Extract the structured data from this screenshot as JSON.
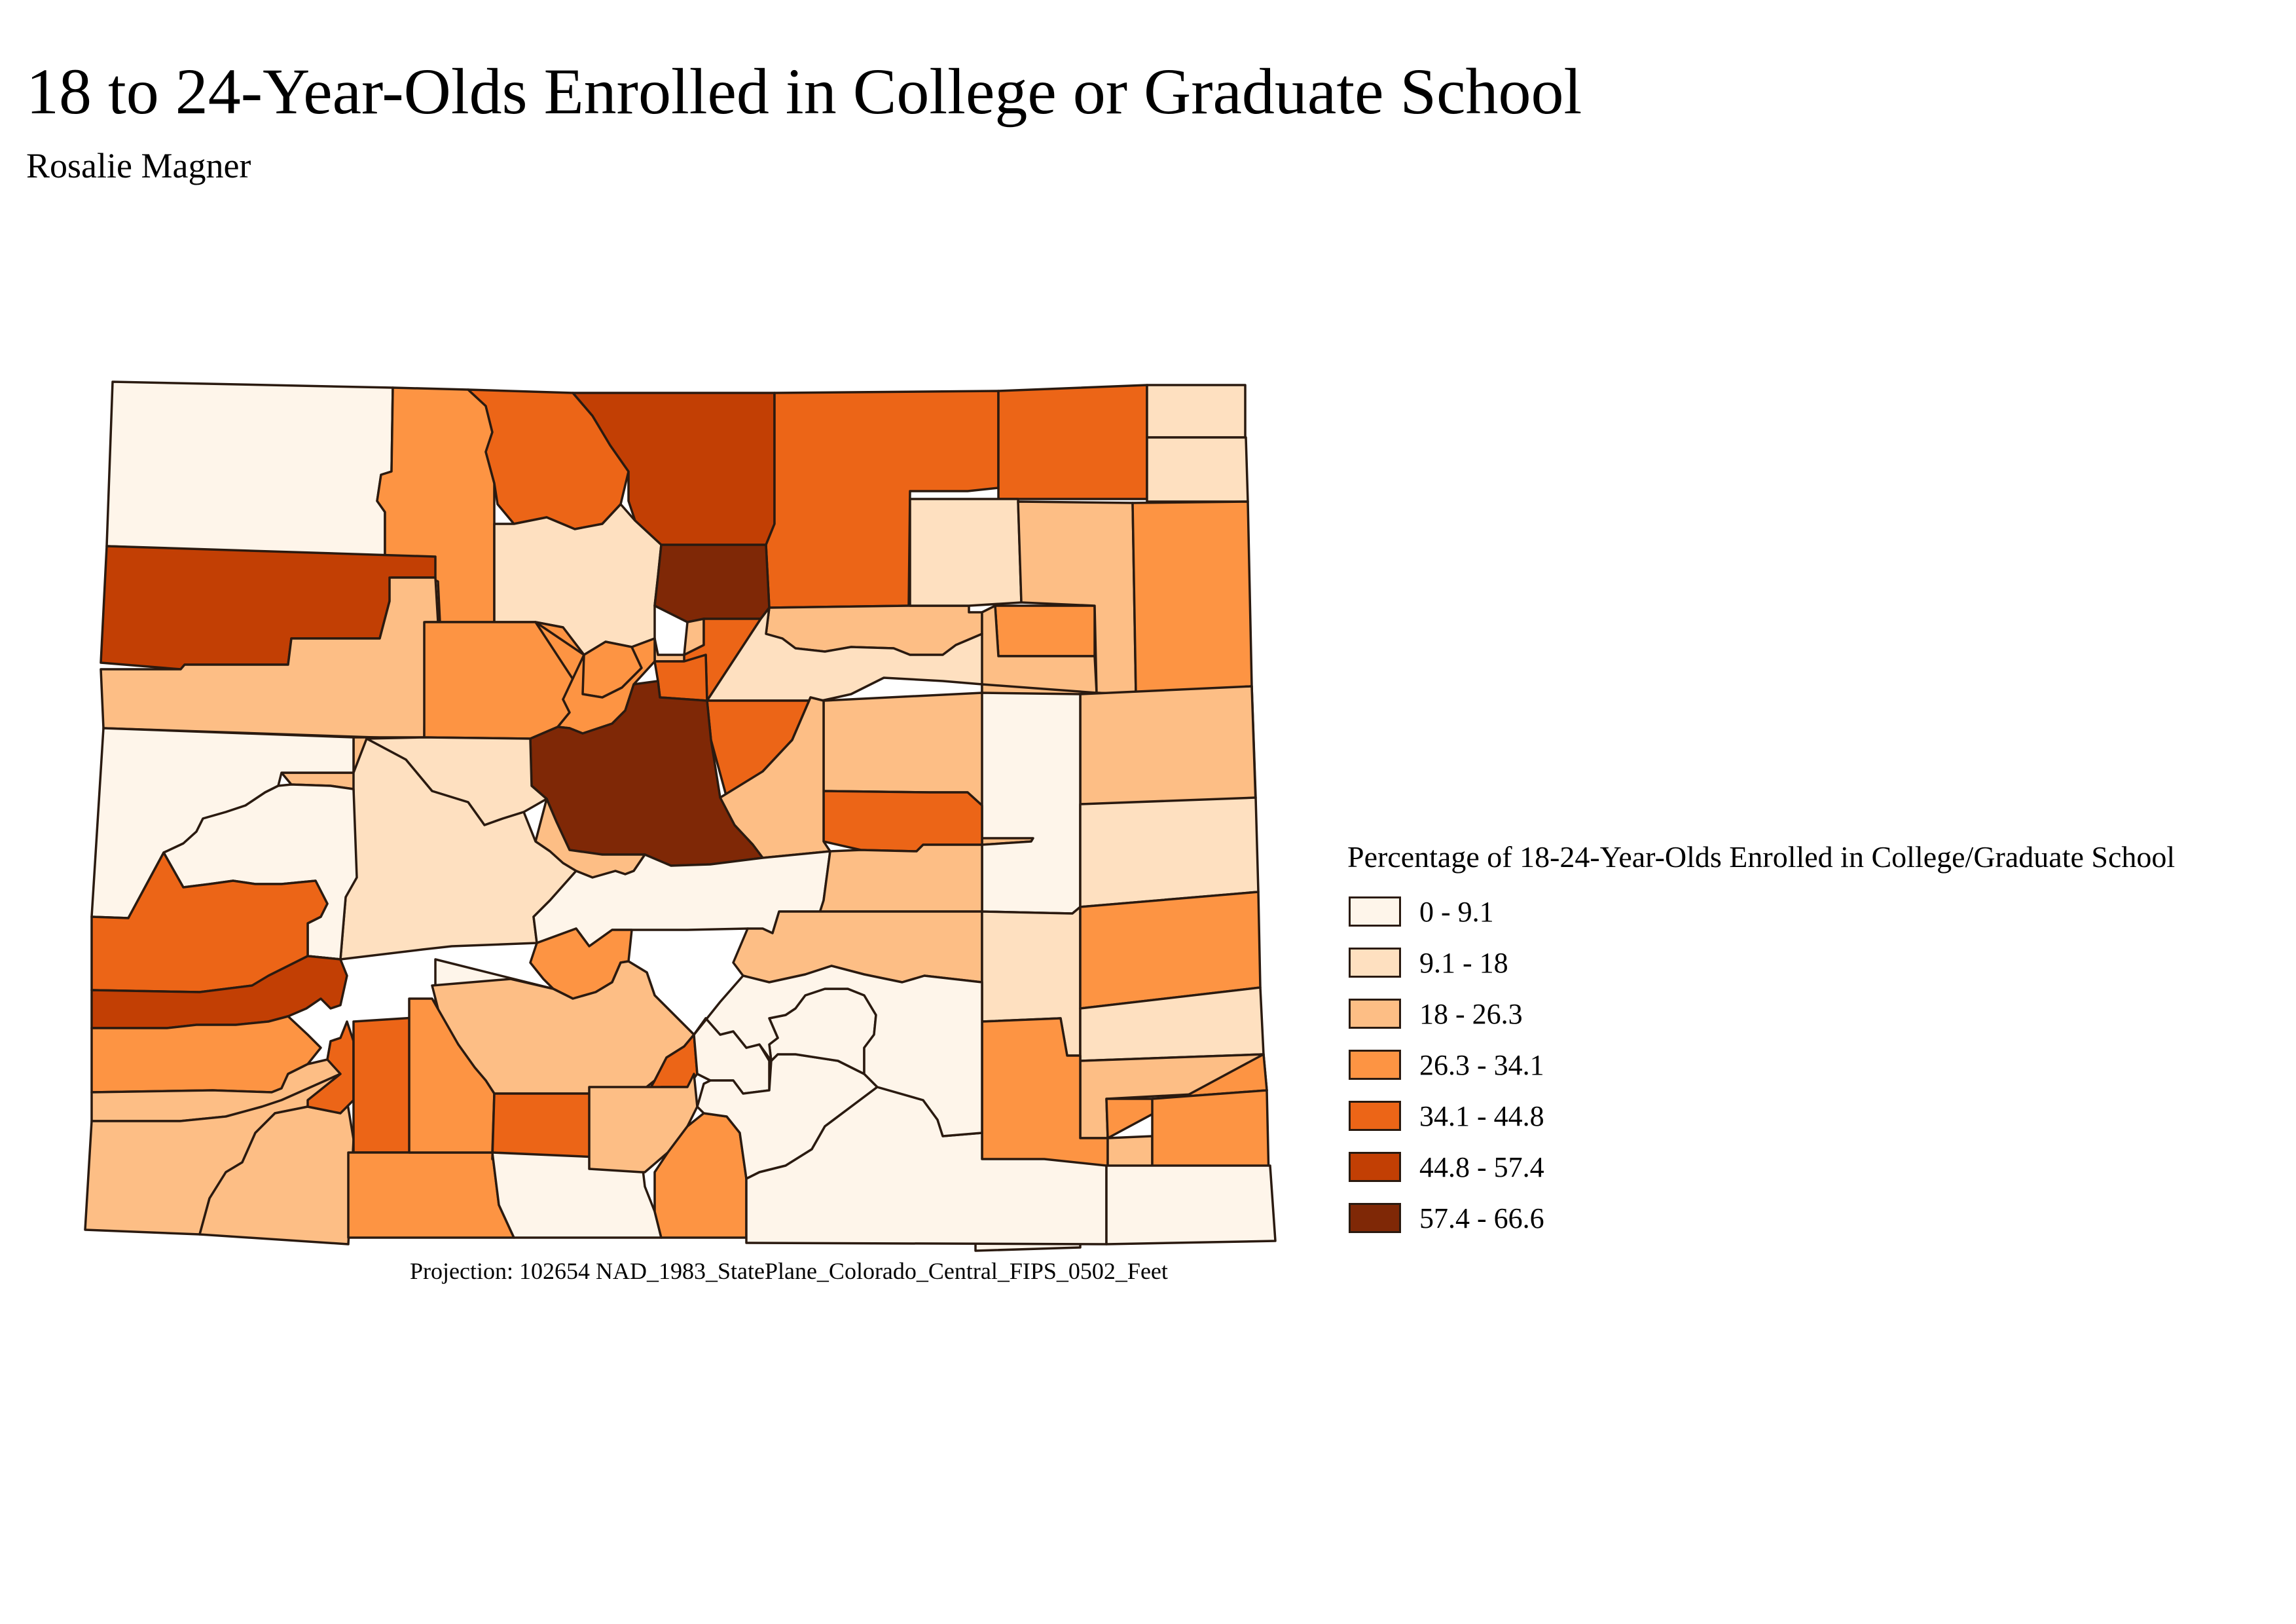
{
  "title": "18 to 24-Year-Olds Enrolled in College or Graduate School",
  "subtitle": "Rosalie Magner",
  "projection": "Projection: 102654 NAD_1983_StatePlane_Colorado_Central_FIPS_0502_Feet",
  "legend": {
    "title": "Percentage of 18-24-Year-Olds Enrolled in College/Graduate School",
    "classes": [
      {
        "label": "0 - 9.1",
        "color": "#fef5ea"
      },
      {
        "label": "9.1 - 18",
        "color": "#fee0c0"
      },
      {
        "label": "18 - 26.3",
        "color": "#fdbe85"
      },
      {
        "label": "26.3 - 34.1",
        "color": "#fd9443"
      },
      {
        "label": "34.1 - 44.8",
        "color": "#ec6517"
      },
      {
        "label": "44.8 - 57.4",
        "color": "#c23f04"
      },
      {
        "label": "57.4 - 66.6",
        "color": "#7f2806"
      }
    ]
  },
  "map": {
    "region": "Colorado",
    "feature_type": "county",
    "counties": [
      {
        "class": 0
      },
      {
        "class": 3
      },
      {
        "class": 4
      },
      {
        "class": 5
      },
      {
        "class": 4
      },
      {
        "class": 4
      },
      {
        "class": 1
      },
      {
        "class": 1
      },
      {
        "class": 5
      },
      {
        "class": 2
      },
      {
        "class": 1
      },
      {
        "class": 6
      },
      {
        "class": 2
      },
      {
        "class": 3
      },
      {
        "class": 2
      },
      {
        "class": 2
      },
      {
        "class": 4
      },
      {
        "class": 1
      },
      {
        "class": 3
      },
      {
        "class": 3
      },
      {
        "class": 3
      },
      {
        "class": 4
      },
      {
        "class": 2
      },
      {
        "class": 4
      },
      {
        "class": 2
      },
      {
        "class": 1
      },
      {
        "class": 2
      },
      {
        "class": 3
      },
      {
        "class": 4
      },
      {
        "class": 2
      },
      {
        "class": 0
      },
      {
        "class": 1
      },
      {
        "class": 4
      },
      {
        "class": 2
      },
      {
        "class": 6
      },
      {
        "class": 2
      },
      {
        "class": 1
      },
      {
        "class": 2
      },
      {
        "class": 0
      },
      {
        "class": 1
      },
      {
        "class": 0
      },
      {
        "class": 0
      },
      {
        "class": 3
      },
      {
        "class": 2
      },
      {
        "class": 2
      },
      {
        "class": 1
      },
      {
        "class": 3
      },
      {
        "class": 1
      },
      {
        "class": 2
      },
      {
        "class": 3
      },
      {
        "class": 3
      },
      {
        "class": 0
      },
      {
        "class": 2
      },
      {
        "class": 3
      },
      {
        "class": 4
      },
      {
        "class": 5
      },
      {
        "class": 3
      },
      {
        "class": 2
      },
      {
        "class": 2
      },
      {
        "class": 2
      },
      {
        "class": 4
      },
      {
        "class": 4
      },
      {
        "class": 3
      },
      {
        "class": 0
      },
      {
        "class": 2
      },
      {
        "class": 3
      },
      {
        "class": 4
      },
      {
        "class": 0
      },
      {
        "class": 2
      },
      {
        "class": 3
      }
    ]
  }
}
